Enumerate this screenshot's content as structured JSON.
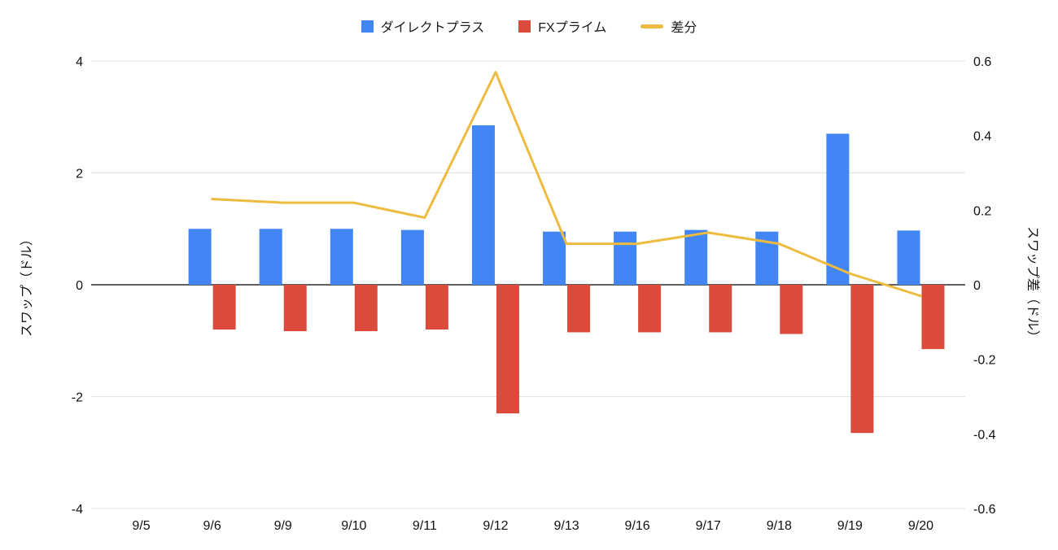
{
  "page": {
    "background": "#ffffff"
  },
  "chart_data": {
    "type": "bar",
    "subtype": "grouped-bars-with-line-overlay",
    "categories": [
      "9/5",
      "9/6",
      "9/9",
      "9/10",
      "9/11",
      "9/12",
      "9/13",
      "9/16",
      "9/17",
      "9/18",
      "9/19",
      "9/20"
    ],
    "series": [
      {
        "name": "ダイレクトプラス",
        "type": "bar",
        "axis": "left",
        "color": "#4285F4",
        "values": [
          null,
          1.0,
          1.0,
          1.0,
          0.98,
          2.85,
          0.95,
          0.95,
          0.98,
          0.95,
          2.7,
          0.97
        ]
      },
      {
        "name": "FXプライム",
        "type": "bar",
        "axis": "left",
        "color": "#DB4A3B",
        "values": [
          null,
          -0.8,
          -0.83,
          -0.83,
          -0.8,
          -2.3,
          -0.85,
          -0.85,
          -0.85,
          -0.88,
          -2.65,
          -1.15
        ]
      },
      {
        "name": "差分",
        "type": "line",
        "axis": "right",
        "color": "#EDBB3F",
        "values": [
          null,
          0.23,
          0.22,
          0.22,
          0.18,
          0.57,
          0.11,
          0.11,
          0.14,
          0.11,
          0.03,
          -0.03
        ]
      }
    ],
    "left_axis": {
      "title": "スワップ（ドル）",
      "min": -4,
      "max": 4,
      "tick_values": [
        4,
        2,
        0,
        -2,
        -4
      ],
      "tick_labels": [
        "4",
        "2",
        "0",
        "-2",
        "-4"
      ]
    },
    "right_axis": {
      "title": "スワップ差（ドル）",
      "min": -0.6,
      "max": 0.6,
      "tick_values": [
        0.6,
        0.4,
        0.2,
        0,
        -0.2,
        -0.4,
        -0.6
      ],
      "tick_labels": [
        "0.6",
        "0.4",
        "0.2",
        "0",
        "-0.2",
        "-0.4",
        "-0.6"
      ]
    },
    "grid": true,
    "legend_position": "top",
    "colors": {
      "grid": "#E3E3E3",
      "baseline": "#000000",
      "text": "#111111"
    }
  }
}
